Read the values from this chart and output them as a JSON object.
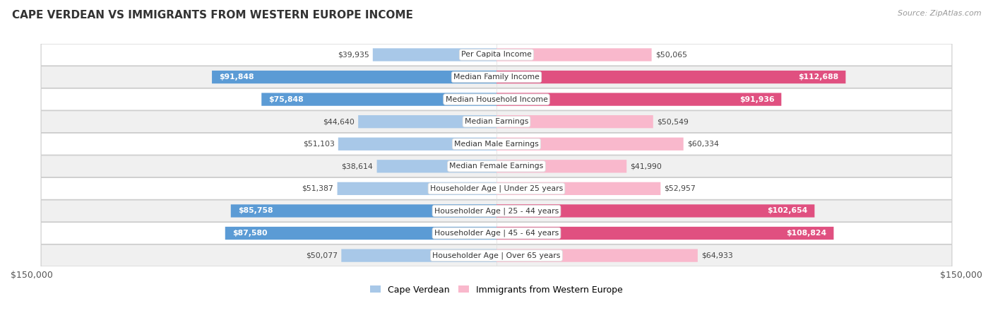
{
  "title": "CAPE VERDEAN VS IMMIGRANTS FROM WESTERN EUROPE INCOME",
  "source": "Source: ZipAtlas.com",
  "categories": [
    "Per Capita Income",
    "Median Family Income",
    "Median Household Income",
    "Median Earnings",
    "Median Male Earnings",
    "Median Female Earnings",
    "Householder Age | Under 25 years",
    "Householder Age | 25 - 44 years",
    "Householder Age | 45 - 64 years",
    "Householder Age | Over 65 years"
  ],
  "cape_verdean": [
    39935,
    91848,
    75848,
    44640,
    51103,
    38614,
    51387,
    85758,
    87580,
    50077
  ],
  "western_europe": [
    50065,
    112688,
    91936,
    50549,
    60334,
    41990,
    52957,
    102654,
    108824,
    64933
  ],
  "cape_verdean_labels": [
    "$39,935",
    "$91,848",
    "$75,848",
    "$44,640",
    "$51,103",
    "$38,614",
    "$51,387",
    "$85,758",
    "$87,580",
    "$50,077"
  ],
  "western_europe_labels": [
    "$50,065",
    "$112,688",
    "$91,936",
    "$50,549",
    "$60,334",
    "$41,990",
    "$52,957",
    "$102,654",
    "$108,824",
    "$64,933"
  ],
  "color_cape_light": "#a8c8e8",
  "color_cape_dark": "#5b9bd5",
  "color_western_light": "#f9b8cc",
  "color_western_dark": "#e05080",
  "max_value": 150000,
  "bar_height": 0.58,
  "row_colors": [
    "#ffffff",
    "#f0f0f0",
    "#ffffff",
    "#f0f0f0",
    "#ffffff",
    "#f0f0f0",
    "#ffffff",
    "#f0f0f0",
    "#ffffff",
    "#f0f0f0"
  ],
  "legend_cape": "Cape Verdean",
  "legend_western": "Immigrants from Western Europe",
  "label_inside_threshold_cv": 60000,
  "label_inside_threshold_we": 60000,
  "large_rows_cv": [
    1,
    2,
    7,
    8
  ],
  "large_rows_we": [
    1,
    2,
    7,
    8
  ]
}
